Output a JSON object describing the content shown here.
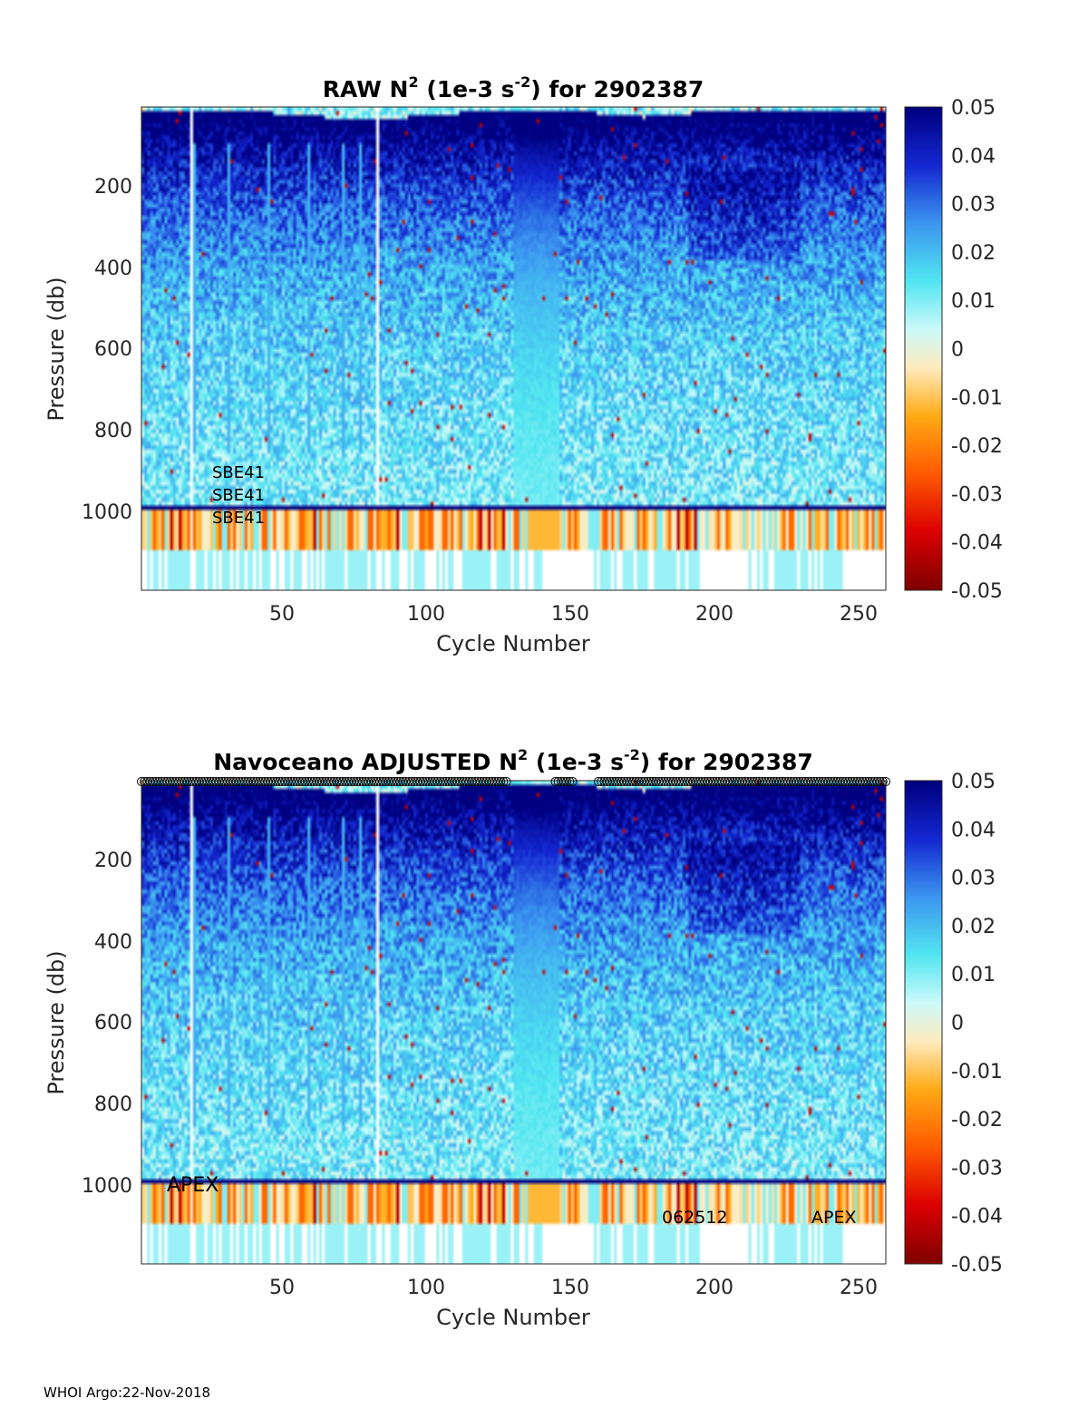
{
  "footer": "WHOI Argo:22-Nov-2018",
  "colorbar": {
    "ticks": [
      "0.05",
      "0.04",
      "0.03",
      "0.02",
      "0.01",
      "0",
      "-0.01",
      "-0.02",
      "-0.03",
      "-0.04",
      "-0.05"
    ],
    "range": [
      -0.05,
      0.05
    ]
  },
  "chart_data": [
    {
      "type": "heatmap",
      "title": {
        "prefix": "RAW N",
        "sup1": "2",
        "middle": " (1e-3 s",
        "sup2": "-2",
        "suffix": ") for 2902387"
      },
      "xlabel": "Cycle Number",
      "ylabel": "Pressure (db)",
      "xlim": [
        1,
        260
      ],
      "ylim": [
        1200,
        0
      ],
      "xticks": [
        "50",
        "100",
        "150",
        "200",
        "250"
      ],
      "yticks": [
        "200",
        "400",
        "600",
        "800",
        "1000"
      ],
      "colormap": "jet",
      "clim": [
        -0.05,
        0.05
      ],
      "annotations": [
        "SBE41",
        "SBE41",
        "SBE41"
      ]
    },
    {
      "type": "heatmap",
      "title": {
        "prefix": "Navoceano  ADJUSTED N",
        "sup1": "2",
        "middle": " (1e-3 s",
        "sup2": "-2",
        "suffix": ") for 2902387"
      },
      "xlabel": "Cycle Number",
      "ylabel": "Pressure (db)",
      "xlim": [
        1,
        260
      ],
      "ylim": [
        1200,
        0
      ],
      "xticks": [
        "50",
        "100",
        "150",
        "200",
        "250"
      ],
      "yticks": [
        "200",
        "400",
        "600",
        "800",
        "1000"
      ],
      "colormap": "jet",
      "clim": [
        -0.05,
        0.05
      ],
      "annotations": [
        "APEX",
        "062512",
        "APEX"
      ]
    }
  ]
}
